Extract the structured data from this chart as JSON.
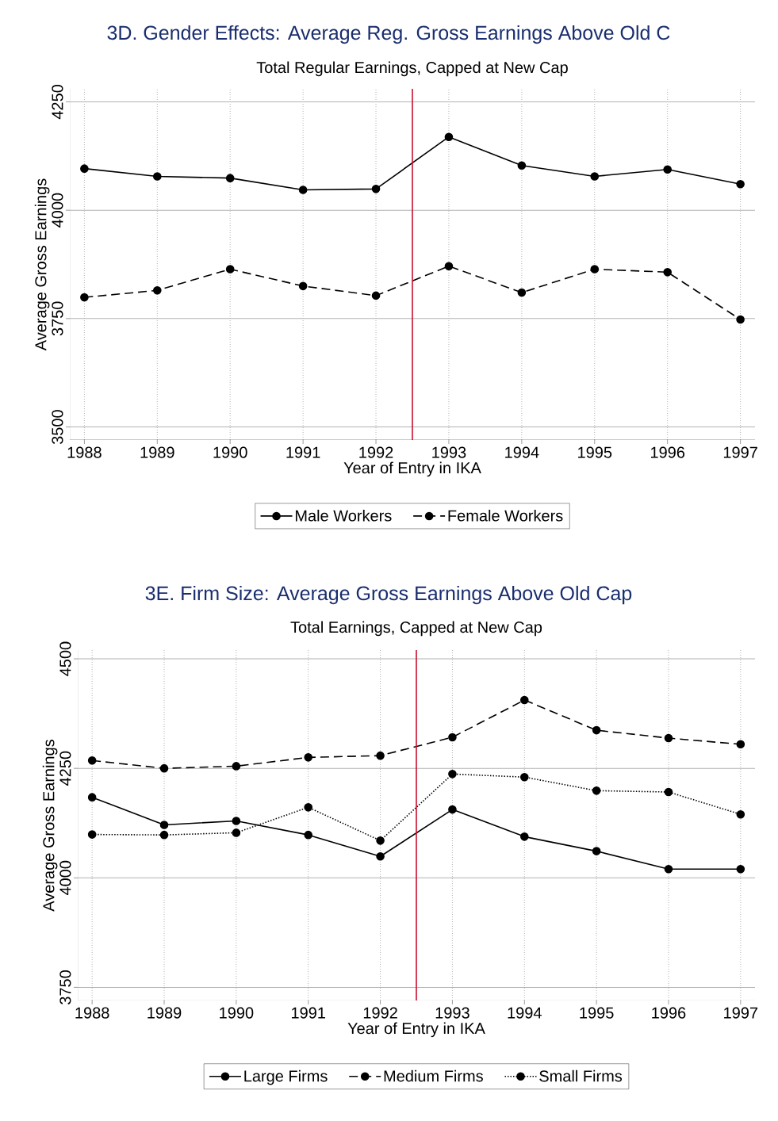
{
  "chart_data": [
    {
      "type": "line",
      "title": "3D. Gender Effects: Average Reg. Gross Earnings Above Old C",
      "subtitle": "Total Regular Earnings, Capped at New Cap",
      "xlabel": "Year of Entry in IKA",
      "ylabel": "Average Gross Earnings",
      "x": [
        1988,
        1989,
        1990,
        1991,
        1992,
        1993,
        1994,
        1995,
        1996,
        1997
      ],
      "series": [
        {
          "name": "Male Workers",
          "color": "#000000",
          "line_style": "solid",
          "values": [
            4096,
            4078,
            4074,
            4047,
            4049,
            4169,
            4103,
            4078,
            4094,
            4060
          ]
        },
        {
          "name": "Female Workers",
          "color": "#000000",
          "line_style": "dashed",
          "values": [
            3799,
            3815,
            3864,
            3825,
            3803,
            3871,
            3810,
            3864,
            3857,
            3748
          ]
        }
      ],
      "xlim": [
        1987.8,
        1997.2
      ],
      "ylim": [
        3470,
        4280
      ],
      "xticks": [
        1988,
        1989,
        1990,
        1991,
        1992,
        1993,
        1994,
        1995,
        1996,
        1997
      ],
      "yticks": [
        3500,
        3750,
        4000,
        4250
      ],
      "ref_lines": [
        {
          "axis": "x",
          "value": 1992.5,
          "color": "#c8102e"
        }
      ],
      "grid": true,
      "legend": "bottom",
      "marker": "circle"
    },
    {
      "type": "line",
      "title": "3E. Firm Size: Average Gross Earnings Above Old Cap",
      "subtitle": "Total Earnings, Capped at New Cap",
      "xlabel": "Year of Entry in IKA",
      "ylabel": "Average Gross Earnings",
      "x": [
        1988,
        1989,
        1990,
        1991,
        1992,
        1993,
        1994,
        1995,
        1996,
        1997
      ],
      "series": [
        {
          "name": "Large Firms",
          "color": "#000000",
          "line_style": "solid",
          "values": [
            4184,
            4121,
            4130,
            4098,
            4049,
            4156,
            4094,
            4061,
            4020,
            4020
          ]
        },
        {
          "name": "Medium Firms",
          "color": "#000000",
          "line_style": "dashed",
          "values": [
            4268,
            4250,
            4255,
            4275,
            4279,
            4321,
            4406,
            4337,
            4319,
            4305
          ]
        },
        {
          "name": "Small Firms",
          "color": "#000000",
          "line_style": "dotted",
          "values": [
            4099,
            4098,
            4103,
            4161,
            4085,
            4237,
            4230,
            4199,
            4196,
            4145
          ]
        }
      ],
      "xlim": [
        1987.8,
        1997.2
      ],
      "ylim": [
        3720,
        4520
      ],
      "xticks": [
        1988,
        1989,
        1990,
        1991,
        1992,
        1993,
        1994,
        1995,
        1996,
        1997
      ],
      "yticks": [
        3750,
        4000,
        4250,
        4500
      ],
      "ref_lines": [
        {
          "axis": "x",
          "value": 1992.5,
          "color": "#c8102e"
        }
      ],
      "grid": true,
      "legend": "bottom",
      "marker": "circle"
    }
  ]
}
